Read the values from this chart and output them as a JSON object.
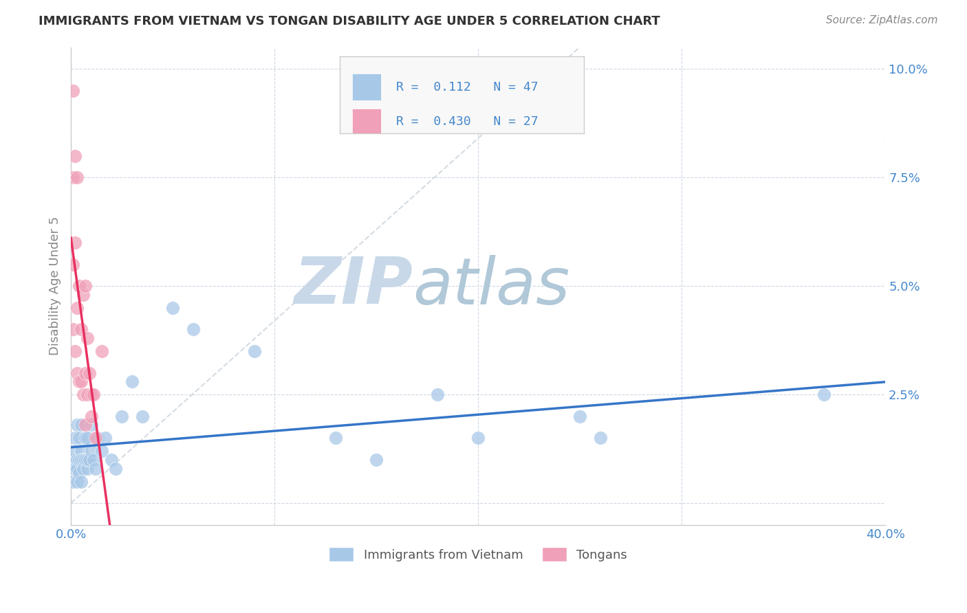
{
  "title": "IMMIGRANTS FROM VIETNAM VS TONGAN DISABILITY AGE UNDER 5 CORRELATION CHART",
  "source": "Source: ZipAtlas.com",
  "ylabel": "Disability Age Under 5",
  "xlim": [
    0.0,
    0.4
  ],
  "ylim": [
    -0.005,
    0.105
  ],
  "xticks": [
    0.0,
    0.4
  ],
  "yticks": [
    0.0,
    0.025,
    0.05,
    0.075,
    0.1
  ],
  "xticklabels": [
    "0.0%",
    "40.0%"
  ],
  "yticklabels": [
    "",
    "2.5%",
    "5.0%",
    "7.5%",
    "10.0%"
  ],
  "grid_xticks": [
    0.0,
    0.1,
    0.2,
    0.3,
    0.4
  ],
  "grid_yticks": [
    0.0,
    0.025,
    0.05,
    0.075,
    0.1
  ],
  "vietnam_r": 0.112,
  "vietnam_n": 47,
  "tongan_r": 0.43,
  "tongan_n": 27,
  "vietnam_color": "#a8c8e8",
  "tongan_color": "#f0a0b8",
  "vietnam_line_color": "#3575c8",
  "tongan_line_color": "#e83060",
  "diag_line_color": "#d0d8e0",
  "watermark_zip": "ZIP",
  "watermark_atlas": "atlas",
  "watermark_color_zip": "#c8d8e8",
  "watermark_color_atlas": "#b0c8d8",
  "background_color": "#ffffff",
  "legend_box_color": "#f8f8f8",
  "legend_border_color": "#cccccc",
  "tick_color": "#4488cc",
  "ylabel_color": "#888888",
  "title_color": "#333333",
  "source_color": "#888888",
  "vietnam_x": [
    0.001,
    0.001,
    0.001,
    0.002,
    0.002,
    0.002,
    0.003,
    0.003,
    0.003,
    0.003,
    0.004,
    0.004,
    0.004,
    0.005,
    0.005,
    0.005,
    0.005,
    0.006,
    0.006,
    0.007,
    0.007,
    0.008,
    0.008,
    0.008,
    0.009,
    0.01,
    0.01,
    0.011,
    0.012,
    0.013,
    0.015,
    0.017,
    0.02,
    0.022,
    0.025,
    0.03,
    0.035,
    0.05,
    0.06,
    0.09,
    0.13,
    0.15,
    0.18,
    0.2,
    0.25,
    0.26,
    0.37
  ],
  "vietnam_y": [
    0.01,
    0.008,
    0.005,
    0.012,
    0.008,
    0.015,
    0.01,
    0.008,
    0.018,
    0.005,
    0.015,
    0.01,
    0.007,
    0.012,
    0.018,
    0.01,
    0.005,
    0.01,
    0.008,
    0.015,
    0.01,
    0.008,
    0.015,
    0.01,
    0.01,
    0.012,
    0.018,
    0.01,
    0.008,
    0.015,
    0.012,
    0.015,
    0.01,
    0.008,
    0.02,
    0.028,
    0.02,
    0.045,
    0.04,
    0.035,
    0.015,
    0.01,
    0.025,
    0.015,
    0.02,
    0.015,
    0.025
  ],
  "tongan_x": [
    0.001,
    0.001,
    0.001,
    0.001,
    0.002,
    0.002,
    0.002,
    0.003,
    0.003,
    0.003,
    0.004,
    0.004,
    0.005,
    0.005,
    0.006,
    0.006,
    0.007,
    0.007,
    0.007,
    0.008,
    0.008,
    0.009,
    0.01,
    0.01,
    0.011,
    0.012,
    0.015
  ],
  "tongan_y": [
    0.095,
    0.075,
    0.055,
    0.04,
    0.08,
    0.06,
    0.035,
    0.075,
    0.045,
    0.03,
    0.05,
    0.028,
    0.04,
    0.028,
    0.048,
    0.025,
    0.05,
    0.03,
    0.018,
    0.038,
    0.025,
    0.03,
    0.02,
    0.025,
    0.025,
    0.015,
    0.035
  ]
}
